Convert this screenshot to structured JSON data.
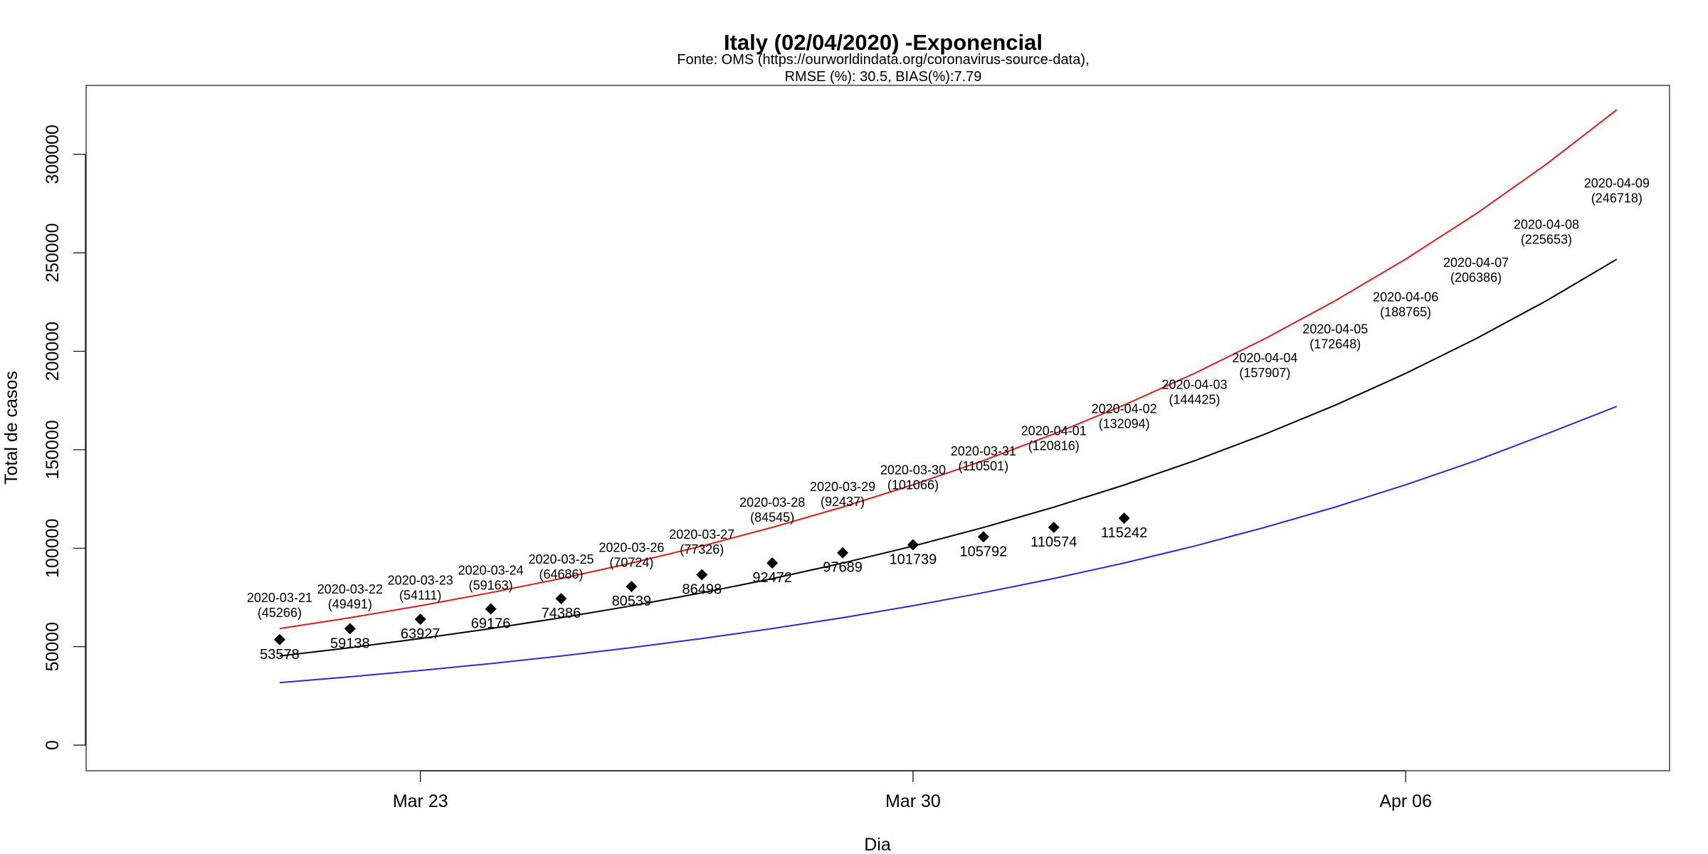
{
  "chart_data": {
    "type": "line",
    "title": "Italy (02/04/2020) -Exponencial",
    "subtitle_lines": [
      "Fonte: OMS (https://ourworldindata.org/coronavirus-source-data),",
      "RMSE (%): 30.5, BIAS(%):7.79"
    ],
    "xlabel": "Dia",
    "ylabel": "Total de casos",
    "x_ticks": [
      {
        "date": "2020-03-23",
        "label": "Mar 23"
      },
      {
        "date": "2020-03-30",
        "label": "Mar 30"
      },
      {
        "date": "2020-04-06",
        "label": "Apr 06"
      }
    ],
    "y_ticks": [
      0,
      50000,
      100000,
      150000,
      200000,
      250000,
      300000
    ],
    "xlim": [
      "2020-03-18.25",
      "2020-04-09.75"
    ],
    "ylim": [
      -13000,
      335000
    ],
    "dates": [
      "2020-03-21",
      "2020-03-22",
      "2020-03-23",
      "2020-03-24",
      "2020-03-25",
      "2020-03-26",
      "2020-03-27",
      "2020-03-28",
      "2020-03-29",
      "2020-03-30",
      "2020-03-31",
      "2020-04-01",
      "2020-04-02",
      "2020-04-03",
      "2020-04-04",
      "2020-04-05",
      "2020-04-06",
      "2020-04-07",
      "2020-04-08",
      "2020-04-09"
    ],
    "observed": [
      {
        "date": "2020-03-21",
        "value": 53578
      },
      {
        "date": "2020-03-22",
        "value": 59138
      },
      {
        "date": "2020-03-23",
        "value": 63927
      },
      {
        "date": "2020-03-24",
        "value": 69176
      },
      {
        "date": "2020-03-25",
        "value": 74386
      },
      {
        "date": "2020-03-26",
        "value": 80539
      },
      {
        "date": "2020-03-27",
        "value": 86498
      },
      {
        "date": "2020-03-28",
        "value": 92472
      },
      {
        "date": "2020-03-29",
        "value": 97689
      },
      {
        "date": "2020-03-30",
        "value": 101739
      },
      {
        "date": "2020-03-31",
        "value": 105792
      },
      {
        "date": "2020-04-01",
        "value": 110574
      },
      {
        "date": "2020-04-02",
        "value": 115242
      }
    ],
    "series": [
      {
        "color": "#000000",
        "values": [
          45266,
          49491,
          54111,
          59163,
          64686,
          70724,
          77326,
          84545,
          92437,
          101066,
          110501,
          120816,
          132094,
          144425,
          157907,
          172648,
          188765,
          206386,
          225653,
          246718
        ]
      },
      {
        "color": "#dd1c1c",
        "values": [
          59200,
          64700,
          70800,
          77400,
          84600,
          92500,
          101100,
          110600,
          120900,
          132200,
          144500,
          158000,
          172700,
          188800,
          206400,
          225700,
          246800,
          269800,
          295000,
          322600
        ]
      },
      {
        "color": "#2a2ad0",
        "values": [
          31700,
          34700,
          37900,
          41400,
          45300,
          49500,
          54100,
          59200,
          64700,
          70800,
          77400,
          84600,
          92500,
          101100,
          110600,
          120900,
          132200,
          144500,
          158000,
          172000
        ]
      }
    ],
    "predicted_labels": [
      {
        "date": "2020-03-21",
        "text": "(45266)"
      },
      {
        "date": "2020-03-22",
        "text": "(49491)"
      },
      {
        "date": "2020-03-23",
        "text": "(54111)"
      },
      {
        "date": "2020-03-24",
        "text": "(59163)"
      },
      {
        "date": "2020-03-25",
        "text": "(64686)"
      },
      {
        "date": "2020-03-26",
        "text": "(70724)"
      },
      {
        "date": "2020-03-27",
        "text": "(77326)"
      },
      {
        "date": "2020-03-28",
        "text": "(84545)"
      },
      {
        "date": "2020-03-29",
        "text": "(92437)"
      },
      {
        "date": "2020-03-30",
        "text": "(101066)"
      },
      {
        "date": "2020-03-31",
        "text": "(110501)"
      },
      {
        "date": "2020-04-01",
        "text": "(120816)"
      },
      {
        "date": "2020-04-02",
        "text": "(132094)"
      },
      {
        "date": "2020-04-03",
        "text": "(144425)"
      },
      {
        "date": "2020-04-04",
        "text": "(157907)"
      },
      {
        "date": "2020-04-05",
        "text": "(172648)"
      },
      {
        "date": "2020-04-06",
        "text": "(188765)"
      },
      {
        "date": "2020-04-07",
        "text": "(206386)"
      },
      {
        "date": "2020-04-08",
        "text": "(225653)"
      },
      {
        "date": "2020-04-09",
        "text": "(246718)"
      }
    ],
    "grid": false,
    "legend": "none"
  }
}
